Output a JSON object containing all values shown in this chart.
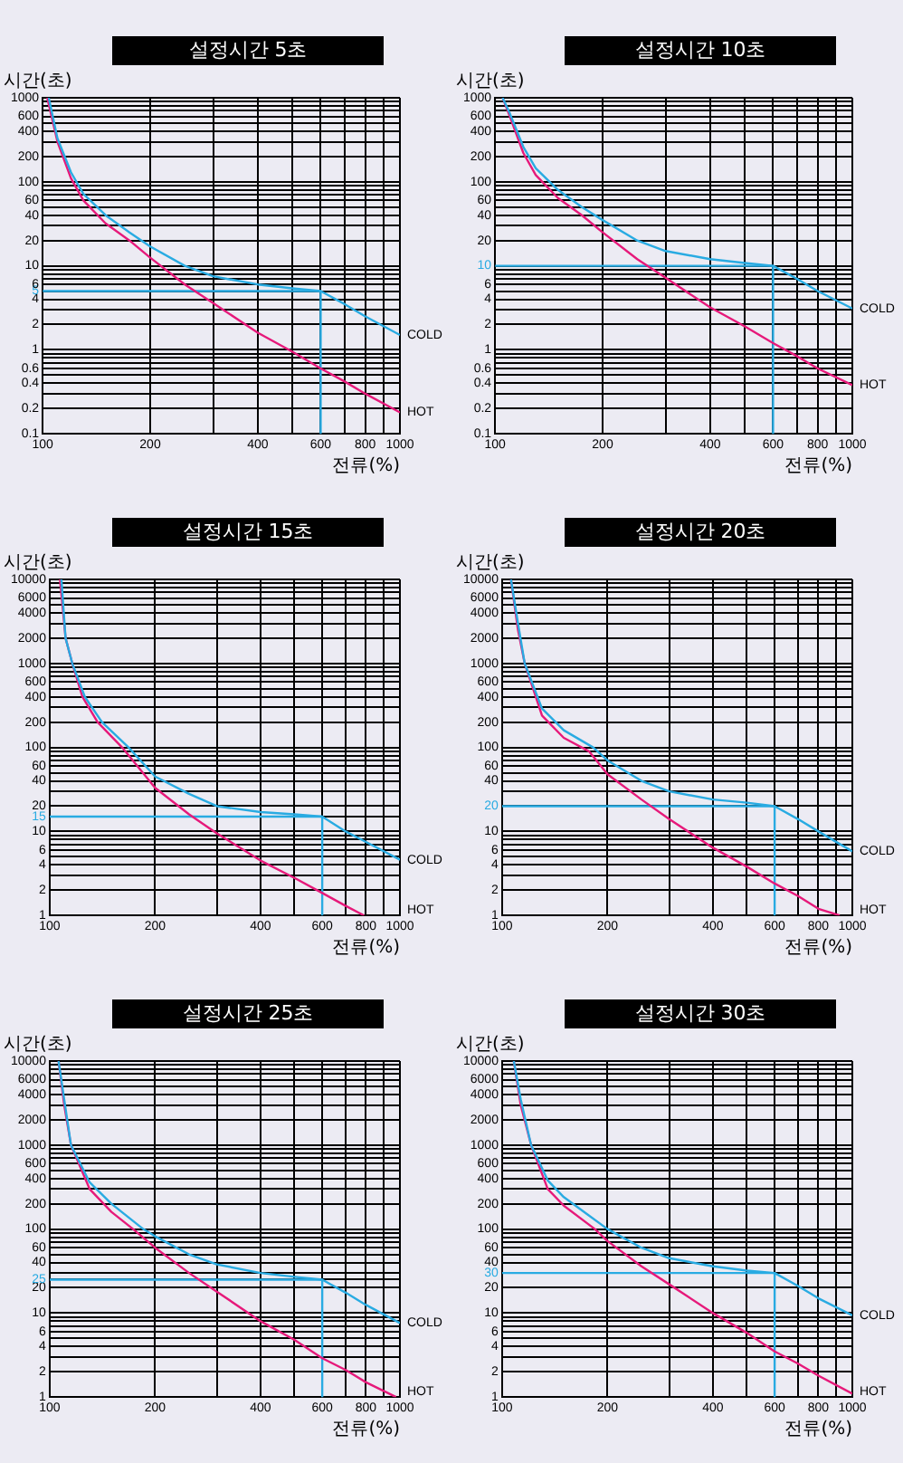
{
  "chart_data": [
    {
      "type": "line",
      "title": "설정시간 5초",
      "xlabel": "전류(%)",
      "ylabel": "시간(초)",
      "log": "xy",
      "grid": true,
      "xlim": [
        100,
        1000
      ],
      "ylim": [
        0.1,
        1000
      ],
      "xticks": [
        100,
        200,
        {
          "value": 300,
          "label": null
        },
        400,
        {
          "value": 500,
          "label": null
        },
        600,
        {
          "value": 700,
          "label": null
        },
        800,
        {
          "value": 900,
          "label": null
        },
        1000
      ],
      "yticks": [
        0.1,
        0.2,
        {
          "value": 0.3,
          "label": null
        },
        0.4,
        {
          "value": 0.5,
          "label": null
        },
        0.6,
        {
          "value": 0.7,
          "label": null
        },
        {
          "value": 0.8,
          "label": null
        },
        {
          "value": 0.9,
          "label": null
        },
        1,
        2,
        {
          "value": 3,
          "label": null
        },
        4,
        5,
        6,
        {
          "value": 7,
          "label": null
        },
        {
          "value": 8,
          "label": null
        },
        {
          "value": 9,
          "label": null
        },
        10,
        20,
        {
          "value": 30,
          "label": null
        },
        40,
        {
          "value": 50,
          "label": null
        },
        60,
        {
          "value": 70,
          "label": null
        },
        {
          "value": 80,
          "label": null
        },
        {
          "value": 90,
          "label": null
        },
        100,
        200,
        {
          "value": 300,
          "label": null
        },
        400,
        {
          "value": 500,
          "label": null
        },
        600,
        {
          "value": 700,
          "label": null
        },
        {
          "value": 800,
          "label": null
        },
        {
          "value": 900,
          "label": null
        },
        1000
      ],
      "series": [
        {
          "name": "COLD",
          "color": "#29abe2",
          "x": [
            104,
            110,
            120,
            130,
            150,
            175,
            200,
            250,
            300,
            400,
            500,
            600,
            700,
            800,
            1000
          ],
          "values": [
            1000,
            330,
            130,
            72,
            40,
            25,
            17,
            10,
            7.5,
            6,
            5.4,
            5,
            3.5,
            2.5,
            1.5
          ]
        },
        {
          "name": "HOT",
          "color": "#e6197a",
          "x": [
            103,
            110,
            120,
            130,
            150,
            175,
            200,
            250,
            300,
            400,
            500,
            600,
            700,
            800,
            1000
          ],
          "values": [
            1000,
            300,
            110,
            60,
            32,
            20,
            12.5,
            6,
            3.6,
            1.6,
            0.95,
            0.6,
            0.42,
            0.3,
            0.18
          ]
        },
        {
          "color": "#29abe2",
          "x": [
            100,
            600,
            600
          ],
          "values": [
            5,
            5,
            0.1
          ]
        }
      ]
    },
    {
      "type": "line",
      "title": "설정시간 10초",
      "xlabel": "전류(%)",
      "ylabel": "시간(초)",
      "log": "xy",
      "grid": true,
      "xlim": [
        100,
        1000
      ],
      "ylim": [
        0.1,
        1000
      ],
      "xticks": [
        100,
        200,
        {
          "value": 300,
          "label": null
        },
        400,
        {
          "value": 500,
          "label": null
        },
        600,
        {
          "value": 700,
          "label": null
        },
        800,
        {
          "value": 900,
          "label": null
        },
        1000
      ],
      "yticks": [
        0.1,
        0.2,
        {
          "value": 0.3,
          "label": null
        },
        0.4,
        {
          "value": 0.5,
          "label": null
        },
        0.6,
        {
          "value": 0.7,
          "label": null
        },
        {
          "value": 0.8,
          "label": null
        },
        {
          "value": 0.9,
          "label": null
        },
        1,
        2,
        {
          "value": 3,
          "label": null
        },
        4,
        {
          "value": 5,
          "label": null
        },
        6,
        {
          "value": 7,
          "label": null
        },
        {
          "value": 8,
          "label": null
        },
        {
          "value": 9,
          "label": null
        },
        10,
        20,
        {
          "value": 30,
          "label": null
        },
        40,
        {
          "value": 50,
          "label": null
        },
        60,
        {
          "value": 70,
          "label": null
        },
        {
          "value": 80,
          "label": null
        },
        {
          "value": 90,
          "label": null
        },
        100,
        200,
        {
          "value": 300,
          "label": null
        },
        400,
        {
          "value": 500,
          "label": null
        },
        600,
        {
          "value": 700,
          "label": null
        },
        {
          "value": 800,
          "label": null
        },
        {
          "value": 900,
          "label": null
        },
        1000
      ],
      "series": [
        {
          "name": "COLD",
          "color": "#29abe2",
          "x": [
            105,
            110,
            120,
            130,
            150,
            175,
            200,
            250,
            300,
            400,
            500,
            600,
            700,
            800,
            1000
          ],
          "values": [
            1000,
            650,
            260,
            145,
            80,
            50,
            35,
            20,
            15,
            12,
            10.8,
            10,
            7,
            5,
            3.1
          ]
        },
        {
          "name": "HOT",
          "color": "#e6197a",
          "x": [
            105,
            110,
            120,
            130,
            150,
            175,
            200,
            250,
            300,
            400,
            500,
            600,
            700,
            800,
            1000
          ],
          "values": [
            1000,
            600,
            220,
            120,
            64,
            40,
            25,
            12,
            7.2,
            3.2,
            1.9,
            1.2,
            0.84,
            0.6,
            0.38
          ]
        },
        {
          "color": "#29abe2",
          "x": [
            100,
            600,
            600
          ],
          "values": [
            10,
            10,
            0.1
          ]
        }
      ]
    },
    {
      "type": "line",
      "title": "설정시간 15초",
      "xlabel": "전류(%)",
      "ylabel": "시간(초)",
      "log": "xy",
      "grid": true,
      "xlim": [
        100,
        1000
      ],
      "ylim": [
        1,
        10000
      ],
      "xticks": [
        100,
        200,
        {
          "value": 300,
          "label": null
        },
        400,
        {
          "value": 500,
          "label": null
        },
        600,
        {
          "value": 700,
          "label": null
        },
        800,
        {
          "value": 900,
          "label": null
        },
        1000
      ],
      "yticks": [
        1,
        2,
        {
          "value": 3,
          "label": null
        },
        4,
        {
          "value": 5,
          "label": null
        },
        6,
        {
          "value": 7,
          "label": null
        },
        {
          "value": 8,
          "label": null
        },
        {
          "value": 9,
          "label": null
        },
        10,
        15,
        20,
        {
          "value": 30,
          "label": null
        },
        40,
        {
          "value": 50,
          "label": null
        },
        60,
        {
          "value": 70,
          "label": null
        },
        {
          "value": 80,
          "label": null
        },
        {
          "value": 90,
          "label": null
        },
        100,
        200,
        {
          "value": 300,
          "label": null
        },
        400,
        {
          "value": 500,
          "label": null
        },
        600,
        {
          "value": 700,
          "label": null
        },
        {
          "value": 800,
          "label": null
        },
        {
          "value": 900,
          "label": null
        },
        1000,
        2000,
        {
          "value": 3000,
          "label": null
        },
        4000,
        {
          "value": 5000,
          "label": null
        },
        6000,
        {
          "value": 7000,
          "label": null
        },
        {
          "value": 8000,
          "label": null
        },
        {
          "value": 9000,
          "label": null
        },
        10000
      ],
      "series": [
        {
          "name": "COLD",
          "color": "#29abe2",
          "x": [
            108,
            111,
            116,
            126,
            141,
            168,
            200,
            250,
            300,
            400,
            500,
            600,
            700,
            800,
            1000
          ],
          "values": [
            10000,
            2000,
            1000,
            400,
            200,
            100,
            45,
            28,
            20,
            17,
            16,
            15,
            10,
            7.5,
            4.6
          ]
        },
        {
          "name": "HOT",
          "color": "#e6197a",
          "x": [
            107,
            111,
            116,
            124,
            137,
            161,
            200,
            250,
            300,
            400,
            500,
            600,
            700,
            790
          ],
          "values": [
            10000,
            2000,
            1000,
            400,
            200,
            100,
            33,
            16,
            9.5,
            4.5,
            2.8,
            1.85,
            1.3,
            1
          ]
        },
        {
          "color": "#29abe2",
          "x": [
            100,
            600,
            600
          ],
          "values": [
            15,
            15,
            1
          ]
        }
      ]
    },
    {
      "type": "line",
      "title": "설정시간 20초",
      "xlabel": "전류(%)",
      "ylabel": "시간(초)",
      "log": "xy",
      "grid": true,
      "xlim": [
        100,
        1000
      ],
      "ylim": [
        1,
        10000
      ],
      "xticks": [
        100,
        200,
        {
          "value": 300,
          "label": null
        },
        400,
        {
          "value": 500,
          "label": null
        },
        600,
        {
          "value": 700,
          "label": null
        },
        800,
        {
          "value": 900,
          "label": null
        },
        1000
      ],
      "yticks": [
        1,
        2,
        {
          "value": 3,
          "label": null
        },
        4,
        {
          "value": 5,
          "label": null
        },
        6,
        {
          "value": 7,
          "label": null
        },
        {
          "value": 8,
          "label": null
        },
        {
          "value": 9,
          "label": null
        },
        10,
        20,
        {
          "value": 30,
          "label": null
        },
        40,
        {
          "value": 50,
          "label": null
        },
        60,
        {
          "value": 70,
          "label": null
        },
        {
          "value": 80,
          "label": null
        },
        {
          "value": 90,
          "label": null
        },
        100,
        200,
        {
          "value": 300,
          "label": null
        },
        400,
        {
          "value": 500,
          "label": null
        },
        600,
        {
          "value": 700,
          "label": null
        },
        {
          "value": 800,
          "label": null
        },
        {
          "value": 900,
          "label": null
        },
        1000,
        2000,
        {
          "value": 3000,
          "label": null
        },
        4000,
        {
          "value": 5000,
          "label": null
        },
        6000,
        {
          "value": 7000,
          "label": null
        },
        {
          "value": 8000,
          "label": null
        },
        {
          "value": 9000,
          "label": null
        },
        10000
      ],
      "series": [
        {
          "name": "COLD",
          "color": "#29abe2",
          "x": [
            106,
            111,
            116,
            130,
            150,
            182,
            200,
            250,
            300,
            400,
            500,
            600,
            700,
            800,
            1000
          ],
          "values": [
            10000,
            3000,
            1000,
            290,
            160,
            100,
            70,
            40,
            30,
            24,
            22,
            20,
            14,
            10,
            5.8
          ]
        },
        {
          "name": "HOT",
          "color": "#e6197a",
          "x": [
            106,
            111,
            116,
            130,
            150,
            177,
            200,
            250,
            300,
            400,
            500,
            600,
            700,
            800,
            920
          ],
          "values": [
            10000,
            2500,
            1000,
            240,
            130,
            90,
            48,
            24,
            14,
            6.4,
            3.8,
            2.4,
            1.7,
            1.2,
            1
          ]
        },
        {
          "color": "#29abe2",
          "x": [
            100,
            600,
            600
          ],
          "values": [
            20,
            20,
            1
          ]
        }
      ]
    },
    {
      "type": "line",
      "title": "설정시간 25초",
      "xlabel": "전류(%)",
      "ylabel": "시간(초)",
      "log": "xy",
      "grid": true,
      "xlim": [
        100,
        1000
      ],
      "ylim": [
        1,
        10000
      ],
      "xticks": [
        100,
        200,
        {
          "value": 300,
          "label": null
        },
        400,
        {
          "value": 500,
          "label": null
        },
        600,
        {
          "value": 700,
          "label": null
        },
        800,
        {
          "value": 900,
          "label": null
        },
        1000
      ],
      "yticks": [
        1,
        2,
        {
          "value": 3,
          "label": null
        },
        4,
        {
          "value": 5,
          "label": null
        },
        6,
        {
          "value": 7,
          "label": null
        },
        {
          "value": 8,
          "label": null
        },
        {
          "value": 9,
          "label": null
        },
        10,
        20,
        25,
        {
          "value": 30,
          "label": null
        },
        40,
        {
          "value": 50,
          "label": null
        },
        60,
        {
          "value": 70,
          "label": null
        },
        {
          "value": 80,
          "label": null
        },
        {
          "value": 90,
          "label": null
        },
        100,
        200,
        {
          "value": 300,
          "label": null
        },
        400,
        {
          "value": 500,
          "label": null
        },
        600,
        {
          "value": 700,
          "label": null
        },
        {
          "value": 800,
          "label": null
        },
        {
          "value": 900,
          "label": null
        },
        1000,
        2000,
        {
          "value": 3000,
          "label": null
        },
        4000,
        {
          "value": 5000,
          "label": null
        },
        6000,
        {
          "value": 7000,
          "label": null
        },
        {
          "value": 8000,
          "label": null
        },
        {
          "value": 9000,
          "label": null
        },
        10000
      ],
      "series": [
        {
          "name": "COLD",
          "color": "#29abe2",
          "x": [
            106,
            110,
            115,
            130,
            150,
            185,
            200,
            250,
            300,
            400,
            500,
            600,
            700,
            800,
            1000
          ],
          "values": [
            10000,
            3500,
            1000,
            360,
            200,
            100,
            82,
            50,
            38,
            30,
            27,
            25,
            17.5,
            12.5,
            7.6
          ]
        },
        {
          "name": "HOT",
          "color": "#e6197a",
          "x": [
            106,
            110,
            115,
            130,
            150,
            173,
            200,
            250,
            300,
            400,
            500,
            600,
            700,
            800,
            975
          ],
          "values": [
            10000,
            3000,
            1000,
            300,
            160,
            100,
            60,
            30,
            18,
            8,
            4.8,
            2.9,
            2.1,
            1.5,
            1
          ]
        },
        {
          "color": "#29abe2",
          "x": [
            100,
            600,
            600
          ],
          "values": [
            25,
            25,
            1
          ]
        }
      ]
    },
    {
      "type": "line",
      "title": "설정시간 30초",
      "xlabel": "전류(%)",
      "ylabel": "시간(초)",
      "log": "xy",
      "grid": true,
      "xlim": [
        100,
        1000
      ],
      "ylim": [
        1,
        10000
      ],
      "xticks": [
        100,
        200,
        {
          "value": 300,
          "label": null
        },
        400,
        {
          "value": 500,
          "label": null
        },
        600,
        {
          "value": 700,
          "label": null
        },
        800,
        {
          "value": 900,
          "label": null
        },
        1000
      ],
      "yticks": [
        1,
        2,
        {
          "value": 3,
          "label": null
        },
        4,
        {
          "value": 5,
          "label": null
        },
        6,
        {
          "value": 7,
          "label": null
        },
        {
          "value": 8,
          "label": null
        },
        {
          "value": 9,
          "label": null
        },
        10,
        20,
        30,
        40,
        {
          "value": 50,
          "label": null
        },
        60,
        {
          "value": 70,
          "label": null
        },
        {
          "value": 80,
          "label": null
        },
        {
          "value": 90,
          "label": null
        },
        100,
        200,
        {
          "value": 300,
          "label": null
        },
        400,
        {
          "value": 500,
          "label": null
        },
        600,
        {
          "value": 700,
          "label": null
        },
        {
          "value": 800,
          "label": null
        },
        {
          "value": 900,
          "label": null
        },
        1000,
        2000,
        {
          "value": 3000,
          "label": null
        },
        4000,
        {
          "value": 5000,
          "label": null
        },
        6000,
        {
          "value": 7000,
          "label": null
        },
        {
          "value": 8000,
          "label": null
        },
        {
          "value": 9000,
          "label": null
        },
        10000
      ],
      "series": [
        {
          "name": "COLD",
          "color": "#29abe2",
          "x": [
            108,
            113,
            121,
            135,
            150,
            175,
            200,
            250,
            300,
            400,
            500,
            600,
            700,
            800,
            1000
          ],
          "values": [
            10000,
            3500,
            1000,
            380,
            240,
            150,
            100,
            60,
            45,
            36,
            32,
            30,
            21,
            15,
            9.4
          ]
        },
        {
          "name": "HOT",
          "color": "#e6197a",
          "x": [
            108,
            113,
            121,
            135,
            150,
            184,
            200,
            250,
            300,
            400,
            500,
            600,
            700,
            800,
            1000
          ],
          "values": [
            10000,
            3000,
            1000,
            300,
            190,
            100,
            72,
            36,
            22,
            10,
            5.8,
            3.5,
            2.5,
            1.8,
            1.1
          ]
        },
        {
          "color": "#29abe2",
          "x": [
            100,
            600,
            600
          ],
          "values": [
            30,
            30,
            1
          ]
        }
      ]
    }
  ]
}
